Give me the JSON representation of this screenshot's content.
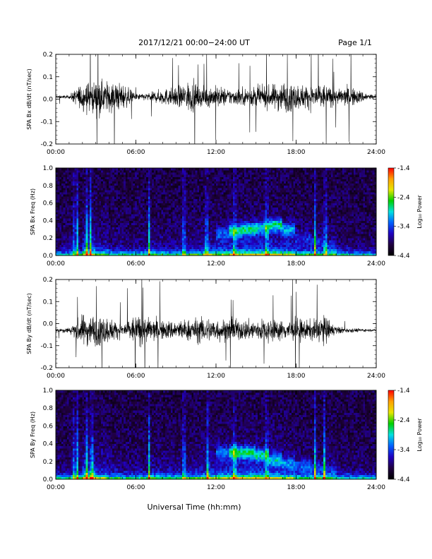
{
  "header": {
    "title": "2017/12/21  00:00−24:00 UT",
    "page": "Page 1/1"
  },
  "footer": {
    "xlabel": "Universal Time (hh:mm)"
  },
  "colorbar": {
    "label": "Log₁₀ Power",
    "ticks": [
      "-1.4",
      "-2.4",
      "-3.4",
      "-4.4"
    ],
    "colors": [
      "#ff0000",
      "#ffa000",
      "#e6e600",
      "#00d000",
      "#00e0e0",
      "#0060ff",
      "#2000c0",
      "#200040",
      "#000000"
    ]
  },
  "chart_data": [
    {
      "type": "line",
      "title": "",
      "ylabel": "SPA Bx dB/dt (nT/sec)",
      "xlabel": "",
      "xticks": [
        "00:00",
        "06:00",
        "12:00",
        "18:00",
        "24:00"
      ],
      "yticks": [
        "0.2",
        "0.1",
        "0.0",
        "-0.1",
        "-0.2"
      ],
      "xlim": [
        0,
        24
      ],
      "ylim": [
        -0.2,
        0.2
      ],
      "baseline": 0.01,
      "series": [
        {
          "values": [
            0.02,
            0.02,
            0.18,
            0.2,
            0.2,
            0.17,
            0.04,
            0.05,
            0.1,
            0.12,
            0.2,
            0.12,
            0.14,
            0.1,
            0.11,
            0.13,
            0.14,
            0.2,
            0.16,
            0.15,
            0.17,
            0.09,
            0.13,
            0.07,
            0.02
          ]
        }
      ]
    },
    {
      "type": "heatmap",
      "title": "",
      "ylabel": "SPA Bx Freq (Hz)",
      "xlabel": "",
      "xticks": [
        "00:00",
        "06:00",
        "12:00",
        "18:00",
        "24:00"
      ],
      "yticks": [
        "1.0",
        "0.8",
        "0.6",
        "0.4",
        "0.2",
        "0.0"
      ],
      "xlim": [
        0,
        24
      ],
      "ylim": [
        0,
        1.0
      ],
      "zlim": [
        -4.4,
        -1.4
      ],
      "activity": [
        0.25,
        0.3,
        0.75,
        0.55,
        0.35,
        0.3,
        0.35,
        0.45,
        0.35,
        0.4,
        0.45,
        0.55,
        0.6,
        0.7,
        0.75,
        0.7,
        0.75,
        0.65,
        0.45,
        0.4,
        0.45,
        0.3,
        0.2,
        0.2
      ],
      "band_freq_hz": [
        0.25,
        0.25,
        0.25,
        0.25,
        0.25,
        0.25,
        0.25,
        0.25,
        0.25,
        0.25,
        0.25,
        0.25,
        0.25,
        0.28,
        0.3,
        0.32,
        0.35,
        0.3,
        0.2,
        0.15,
        0.1,
        0.1,
        0.1,
        0.1
      ],
      "band_strength": [
        0,
        0,
        0,
        0,
        0,
        0,
        0,
        0,
        0,
        0,
        0,
        0,
        0.4,
        0.8,
        0.9,
        0.8,
        0.9,
        0.6,
        0.3,
        0.3,
        0.2,
        0,
        0,
        0
      ],
      "spikes_hours": [
        1.4,
        1.6,
        2.3,
        2.6,
        7.0,
        9.6,
        11.3,
        13.4,
        15.8,
        19.4,
        20.2
      ]
    },
    {
      "type": "line",
      "title": "",
      "ylabel": "SPA By dB/dt (nT/sec)",
      "xlabel": "",
      "xticks": [
        "00:00",
        "06:00",
        "12:00",
        "18:00",
        "24:00"
      ],
      "yticks": [
        "0.2",
        "0.1",
        "0.0",
        "-0.1",
        "-0.2"
      ],
      "xlim": [
        0,
        24
      ],
      "ylim": [
        -0.2,
        0.2
      ],
      "baseline": -0.03,
      "series": [
        {
          "values": [
            0.02,
            0.04,
            0.2,
            0.2,
            0.16,
            0.08,
            0.2,
            0.16,
            0.12,
            0.13,
            0.14,
            0.17,
            0.15,
            0.14,
            0.13,
            0.14,
            0.15,
            0.12,
            0.16,
            0.12,
            0.2,
            0.05,
            0.03,
            0.02
          ]
        }
      ]
    },
    {
      "type": "heatmap",
      "title": "",
      "ylabel": "SPA By Freq (Hz)",
      "xlabel": "",
      "xticks": [
        "00:00",
        "06:00",
        "12:00",
        "18:00",
        "24:00"
      ],
      "yticks": [
        "1.0",
        "0.8",
        "0.6",
        "0.4",
        "0.2",
        "0.0"
      ],
      "xlim": [
        0,
        24
      ],
      "ylim": [
        0,
        1.0
      ],
      "zlim": [
        -4.4,
        -1.4
      ],
      "activity": [
        0.3,
        0.35,
        0.8,
        0.6,
        0.4,
        0.35,
        0.35,
        0.45,
        0.4,
        0.45,
        0.5,
        0.6,
        0.65,
        0.75,
        0.75,
        0.7,
        0.7,
        0.55,
        0.4,
        0.4,
        0.4,
        0.3,
        0.25,
        0.2
      ],
      "band_freq_hz": [
        0.25,
        0.25,
        0.25,
        0.25,
        0.25,
        0.25,
        0.25,
        0.25,
        0.25,
        0.25,
        0.25,
        0.25,
        0.3,
        0.3,
        0.3,
        0.27,
        0.22,
        0.18,
        0.15,
        0.12,
        0.1,
        0.1,
        0.1,
        0.1
      ],
      "band_strength": [
        0,
        0,
        0,
        0,
        0,
        0,
        0,
        0,
        0,
        0,
        0,
        0,
        0.5,
        0.9,
        0.9,
        0.8,
        0.7,
        0.5,
        0.4,
        0.3,
        0.2,
        0,
        0,
        0
      ],
      "spikes_hours": [
        1.4,
        1.6,
        2.3,
        2.7,
        7.0,
        9.6,
        11.4,
        13.4,
        15.8,
        19.4,
        20.1
      ]
    }
  ]
}
